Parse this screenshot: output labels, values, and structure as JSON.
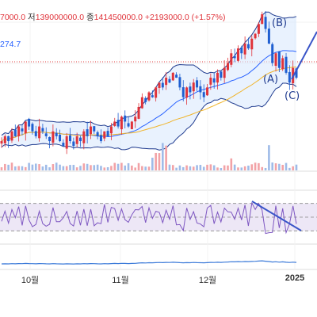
{
  "header": {
    "open_fragment": "7000.0",
    "low_label": "저",
    "low_value": "139000000.0",
    "close_label": "종",
    "close_value": "141450000.0",
    "change": "+2193000.0 (+1.57%)",
    "ma_value_fragment": "274.7"
  },
  "annotations": {
    "wave_a": "(A)",
    "wave_b": "(B)",
    "wave_c": "(C)"
  },
  "colors": {
    "up": "#e0333a",
    "down": "#1f5fd1",
    "ma_mid": "#2962ff",
    "ma_long": "#f0b429",
    "band": "#dbeafd",
    "rsi": "#7e57c2",
    "rsi_zone": "#ede7f6",
    "obv": "#3d7bd9",
    "trendline": "#3a55c8"
  },
  "chart_data": {
    "type": "candlestick",
    "xaxis_ticks": [
      {
        "label": "10월",
        "bold": false
      },
      {
        "label": "11월",
        "bold": false
      },
      {
        "label": "12월",
        "bold": false
      },
      {
        "label": "2025",
        "bold": true
      }
    ],
    "indicators": [
      "Bollinger Bands",
      "Moving Average",
      "Volume",
      "RSI",
      "OBV"
    ],
    "rsi_levels": [
      70,
      50,
      30
    ],
    "closes": [
      86,
      87,
      86,
      88,
      87,
      89,
      88,
      90,
      89,
      88,
      87,
      89,
      88,
      87,
      86,
      88,
      87,
      86,
      85,
      87,
      86,
      85,
      87,
      86,
      88,
      87,
      89,
      88,
      87,
      86,
      88,
      87,
      89,
      90,
      89,
      91,
      90,
      89,
      90,
      91,
      93,
      95,
      94,
      96,
      95,
      97,
      98,
      97,
      99,
      98,
      100,
      99,
      97,
      95,
      97,
      96,
      98,
      97,
      96,
      95,
      97,
      99,
      98,
      100,
      99,
      101,
      102,
      104,
      103,
      105,
      104,
      106,
      105,
      107,
      108,
      110,
      112,
      109,
      106,
      102,
      104,
      101,
      103,
      100,
      98,
      101,
      99
    ]
  }
}
